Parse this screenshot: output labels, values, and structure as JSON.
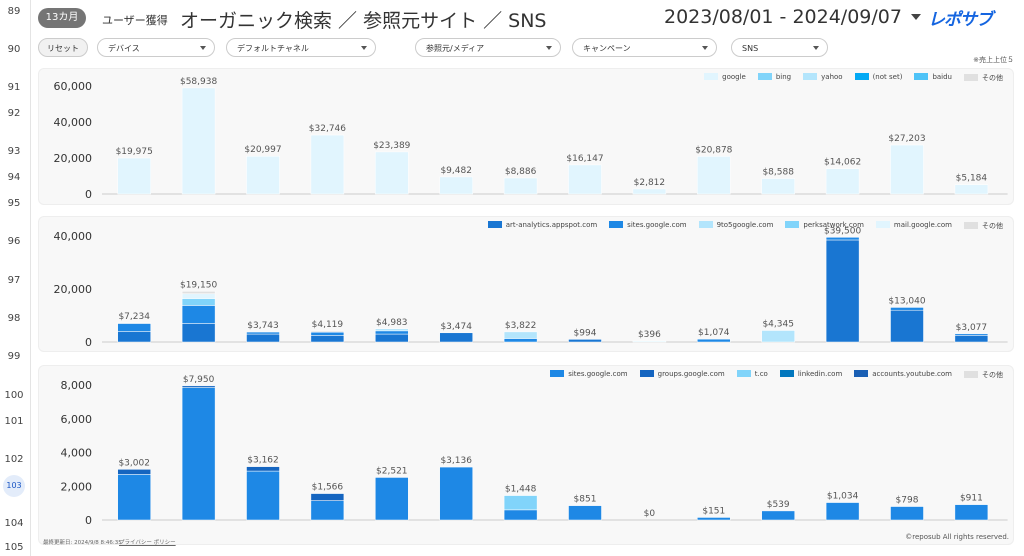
{
  "row_numbers": [
    "89",
    "90",
    "91",
    "92",
    "93",
    "94",
    "95",
    "96",
    "97",
    "98",
    "99",
    "100",
    "101",
    "102",
    "103",
    "104",
    "105"
  ],
  "header": {
    "badge": "13カ月",
    "section": "ユーザー獲得",
    "title": "オーガニック検索 ／ 参照元サイト ／ SNS",
    "date_range": "2023/08/01 - 2024/09/07",
    "logo": "レポサブ"
  },
  "filters": {
    "reset": "リセット",
    "dropdowns": [
      "デバイス",
      "デフォルトチャネル",
      "参照元/メディア",
      "キャンペーン",
      "SNS"
    ]
  },
  "note": "※売上上位５",
  "footer": {
    "updated": "最終更新日: 2024/9/8 8:46:35",
    "privacy": "プライバシー ポリシー",
    "copyright": "©reposub All rights reserved."
  },
  "chart_data": [
    {
      "type": "stacked_bar",
      "ylim": [
        0,
        60000
      ],
      "yticks": [
        0,
        {
          "value": 20000,
          "label": "20,000"
        },
        {
          "value": 40000,
          "label": "40,000"
        },
        {
          "value": 60000,
          "label": "60,000"
        }
      ],
      "series": [
        {
          "name": "google",
          "color": "#e1f5fe",
          "values": [
            19975,
            58938,
            20997,
            32746,
            23389,
            9482,
            8886,
            16147,
            2812,
            20878,
            8588,
            14062,
            27203,
            5184
          ]
        },
        {
          "name": "bing",
          "color": "#81d4fa",
          "values": [
            0,
            0,
            0,
            0,
            0,
            0,
            0,
            0,
            0,
            0,
            0,
            0,
            0,
            0
          ]
        },
        {
          "name": "yahoo",
          "color": "#b3e5fc",
          "values": [
            0,
            0,
            0,
            0,
            0,
            0,
            0,
            0,
            0,
            0,
            0,
            0,
            0,
            0
          ]
        },
        {
          "name": "(not set)",
          "color": "#03a9f4",
          "values": [
            0,
            0,
            0,
            0,
            0,
            0,
            0,
            0,
            0,
            0,
            0,
            0,
            0,
            0
          ]
        },
        {
          "name": "baidu",
          "color": "#4fc3f7",
          "values": [
            0,
            0,
            0,
            0,
            0,
            0,
            0,
            0,
            0,
            0,
            0,
            0,
            0,
            0
          ]
        },
        {
          "name": "その他",
          "color": "#e0e0e0",
          "values": [
            0,
            0,
            0,
            0,
            0,
            0,
            0,
            0,
            0,
            0,
            0,
            0,
            0,
            0
          ]
        }
      ],
      "totals": [
        19975,
        58938,
        20997,
        32746,
        23389,
        9482,
        8886,
        16147,
        2812,
        20878,
        8588,
        14062,
        27203,
        5184
      ],
      "total_labels": [
        "$19,975",
        "$58,938",
        "$20,997",
        "$32,746",
        "$23,389",
        "$9,482",
        "$8,886",
        "$16,147",
        "$2,812",
        "$20,878",
        "$8,588",
        "$14,062",
        "$27,203",
        "$5,184"
      ]
    },
    {
      "type": "stacked_bar",
      "ylim": [
        0,
        40000
      ],
      "yticks": [
        0,
        {
          "value": 20000,
          "label": "20,000"
        },
        {
          "value": 40000,
          "label": "40,000"
        }
      ],
      "series": [
        {
          "name": "art-analytics.appspot.com",
          "color": "#1976d2",
          "values": [
            4000,
            7000,
            3000,
            2500,
            3000,
            3474,
            0,
            994,
            0,
            0,
            0,
            38500,
            12000,
            2500
          ]
        },
        {
          "name": "sites.google.com",
          "color": "#1e88e5",
          "values": [
            3000,
            6800,
            743,
            1200,
            1200,
            0,
            1322,
            0,
            0,
            1074,
            0,
            1000,
            1040,
            577
          ]
        },
        {
          "name": "9to5google.com",
          "color": "#b3e5fc",
          "values": [
            0,
            0,
            0,
            0,
            783,
            0,
            2500,
            0,
            0,
            0,
            4345,
            0,
            0,
            0
          ]
        },
        {
          "name": "perksatwork.com",
          "color": "#81d4fa",
          "values": [
            0,
            2600,
            0,
            0,
            0,
            0,
            0,
            0,
            0,
            0,
            0,
            0,
            0,
            0
          ]
        },
        {
          "name": "mail.google.com",
          "color": "#e1f5fe",
          "values": [
            0,
            1800,
            0,
            0,
            0,
            0,
            0,
            0,
            396,
            0,
            0,
            0,
            0,
            0
          ]
        },
        {
          "name": "その他",
          "color": "#e0e0e0",
          "values": [
            234,
            950,
            0,
            419,
            0,
            0,
            0,
            0,
            0,
            0,
            0,
            0,
            0,
            0
          ]
        }
      ],
      "totals": [
        7234,
        19150,
        3743,
        4119,
        4983,
        3474,
        3822,
        994,
        396,
        1074,
        4345,
        39500,
        13040,
        3077
      ],
      "total_labels": [
        "$7,234",
        "$19,150",
        "$3,743",
        "$4,119",
        "$4,983",
        "$3,474",
        "$3,822",
        "$994",
        "$396",
        "$1,074",
        "$4,345",
        "$39,500",
        "$13,040",
        "$3,077"
      ]
    },
    {
      "type": "stacked_bar",
      "ylim": [
        0,
        8000
      ],
      "yticks": [
        0,
        {
          "value": 2000,
          "label": "2,000"
        },
        {
          "value": 4000,
          "label": "4,000"
        },
        {
          "value": 6000,
          "label": "6,000"
        },
        {
          "value": 8000,
          "label": "8,000"
        }
      ],
      "series": [
        {
          "name": "sites.google.com",
          "color": "#1e88e5",
          "values": [
            2700,
            7850,
            2900,
            1150,
            2521,
            3136,
            600,
            851,
            0,
            151,
            539,
            1034,
            798,
            911
          ]
        },
        {
          "name": "groups.google.com",
          "color": "#1565c0",
          "values": [
            302,
            100,
            262,
            416,
            0,
            0,
            0,
            0,
            0,
            0,
            0,
            0,
            0,
            0
          ]
        },
        {
          "name": "t.co",
          "color": "#81d4fa",
          "values": [
            0,
            0,
            0,
            0,
            0,
            0,
            848,
            0,
            0,
            0,
            0,
            0,
            0,
            0
          ]
        },
        {
          "name": "linkedin.com",
          "color": "#0277bd",
          "values": [
            0,
            0,
            0,
            0,
            0,
            0,
            0,
            0,
            0,
            0,
            0,
            0,
            0,
            0
          ]
        },
        {
          "name": "accounts.youtube.com",
          "color": "#1a5fb4",
          "values": [
            0,
            0,
            0,
            0,
            0,
            0,
            0,
            0,
            0,
            0,
            0,
            0,
            0,
            0
          ]
        },
        {
          "name": "その他",
          "color": "#e0e0e0",
          "values": [
            0,
            0,
            0,
            0,
            0,
            0,
            0,
            0,
            0,
            0,
            0,
            0,
            0,
            0
          ]
        }
      ],
      "totals": [
        3002,
        7950,
        3162,
        1566,
        2521,
        3136,
        1448,
        851,
        0,
        151,
        539,
        1034,
        798,
        911
      ],
      "total_labels": [
        "$3,002",
        "$7,950",
        "$3,162",
        "$1,566",
        "$2,521",
        "$3,136",
        "$1,448",
        "$851",
        "$0",
        "$151",
        "$539",
        "$1,034",
        "$798",
        "$911"
      ]
    }
  ]
}
